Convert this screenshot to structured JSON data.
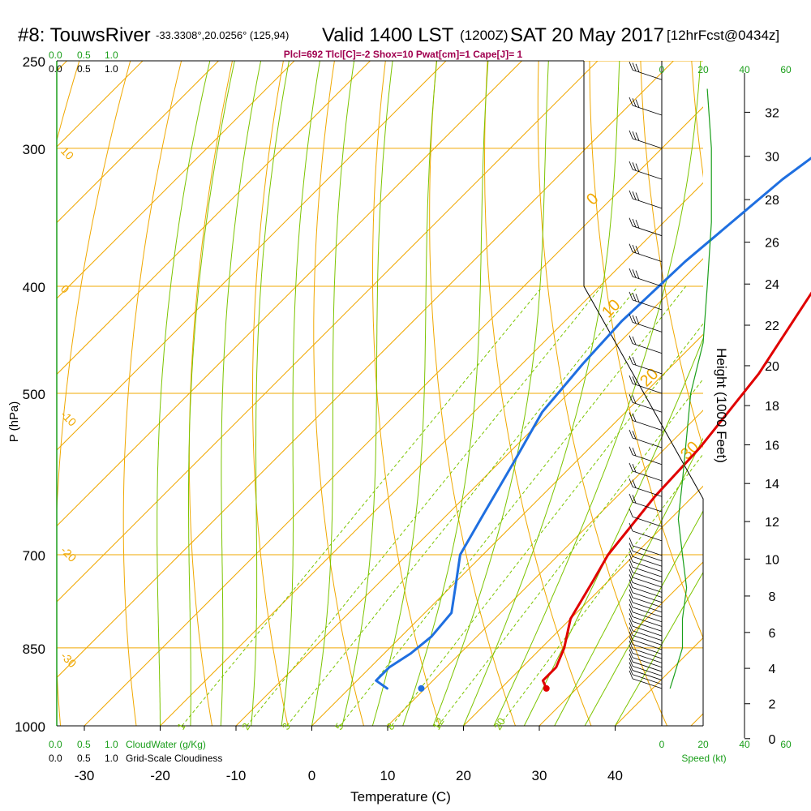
{
  "header": {
    "station": "#8: TouwsRiver",
    "coords": "-33.3308°,20.0256° (125,94)",
    "valid": "Valid 1400 LST",
    "zulu": "(1200Z)",
    "date": "SAT 20 May 2017",
    "forecast": "[12hrFcst@0434z]",
    "params": "Plcl=692 Tlcl[C]=-2 Shox=10 Pwat[cm]=1 Cape[J]= 1"
  },
  "colors": {
    "isotherm": "#f0a800",
    "dry_adiabat": "#f0a800",
    "moist_adiabat": "#7cc400",
    "mixing_ratio": "#7cc400",
    "temperature": "#e00000",
    "dewpoint": "#1f6fe0",
    "wind_speed": "#1a9e1a",
    "cloud": "#1a9e1a",
    "params": "#a0004f"
  },
  "cloud_scale": {
    "cloudwater_ticks": [
      "0.0",
      "0.5",
      "1.0"
    ],
    "cloudiness_ticks": [
      "0.0",
      "0.5",
      "1.0"
    ],
    "cloudwater_label": "CloudWater (g/Kg)",
    "cloudiness_label": "Grid-Scale Cloudiness"
  },
  "wind_axis": {
    "ticks": [
      "0",
      "20",
      "40",
      "60"
    ],
    "label": "Speed (kt)"
  },
  "chart_data": {
    "type": "line",
    "title": "",
    "xlabel": "Temperature (C)",
    "ylabel": "P (hPa)",
    "y2label": "Height (1000 Feet)",
    "xlim": [
      -34,
      36
    ],
    "ylim": [
      250,
      1000
    ],
    "x_ticks": [
      -30,
      -20,
      -10,
      0,
      10,
      20,
      30,
      40
    ],
    "p_ticks": [
      250,
      300,
      400,
      500,
      700,
      850,
      1000
    ],
    "height_ticks": [
      0,
      2,
      4,
      6,
      8,
      10,
      12,
      14,
      16,
      18,
      20,
      22,
      24,
      26,
      28,
      30,
      32
    ],
    "isotherm_labels": [
      "10",
      "0",
      "-10",
      "-20",
      "-30"
    ],
    "right_temp_labels": [
      "0",
      "10",
      "20",
      "30"
    ],
    "mixing_ratio_labels": [
      "1",
      "2",
      "3",
      "5",
      "8",
      "12",
      "20"
    ],
    "series": [
      {
        "key": "temperature",
        "points": [
          [
            26,
            925
          ],
          [
            24.5,
            910
          ],
          [
            24.5,
            885
          ],
          [
            23,
            850
          ],
          [
            20,
            800
          ],
          [
            18,
            740
          ],
          [
            16.5,
            700
          ],
          [
            15,
            620
          ],
          [
            14.5,
            560
          ],
          [
            12.5,
            480
          ],
          [
            8.5,
            400
          ],
          [
            4,
            330
          ],
          [
            0,
            270
          ]
        ]
      },
      {
        "key": "dewpoint",
        "points": [
          [
            5,
            925
          ],
          [
            2.5,
            910
          ],
          [
            2.5,
            885
          ],
          [
            3.5,
            860
          ],
          [
            4,
            830
          ],
          [
            3.5,
            790
          ],
          [
            0,
            740
          ],
          [
            -3,
            700
          ],
          [
            -5,
            650
          ],
          [
            -8,
            580
          ],
          [
            -11,
            520
          ],
          [
            -12,
            470
          ],
          [
            -12.5,
            430
          ],
          [
            -12,
            380
          ],
          [
            -10,
            320
          ],
          [
            -7,
            280
          ],
          [
            -6,
            260
          ]
        ]
      }
    ],
    "surface_dewpoint_marker": [
      9.5,
      925
    ],
    "wind_speed_kt": [
      [
        4,
        925
      ],
      [
        6,
        900
      ],
      [
        10,
        850
      ],
      [
        10,
        800
      ],
      [
        12,
        750
      ],
      [
        10,
        700
      ],
      [
        8,
        650
      ],
      [
        10,
        600
      ],
      [
        14,
        500
      ],
      [
        20,
        450
      ],
      [
        22,
        400
      ],
      [
        24,
        350
      ],
      [
        24,
        300
      ],
      [
        22,
        265
      ]
    ]
  }
}
